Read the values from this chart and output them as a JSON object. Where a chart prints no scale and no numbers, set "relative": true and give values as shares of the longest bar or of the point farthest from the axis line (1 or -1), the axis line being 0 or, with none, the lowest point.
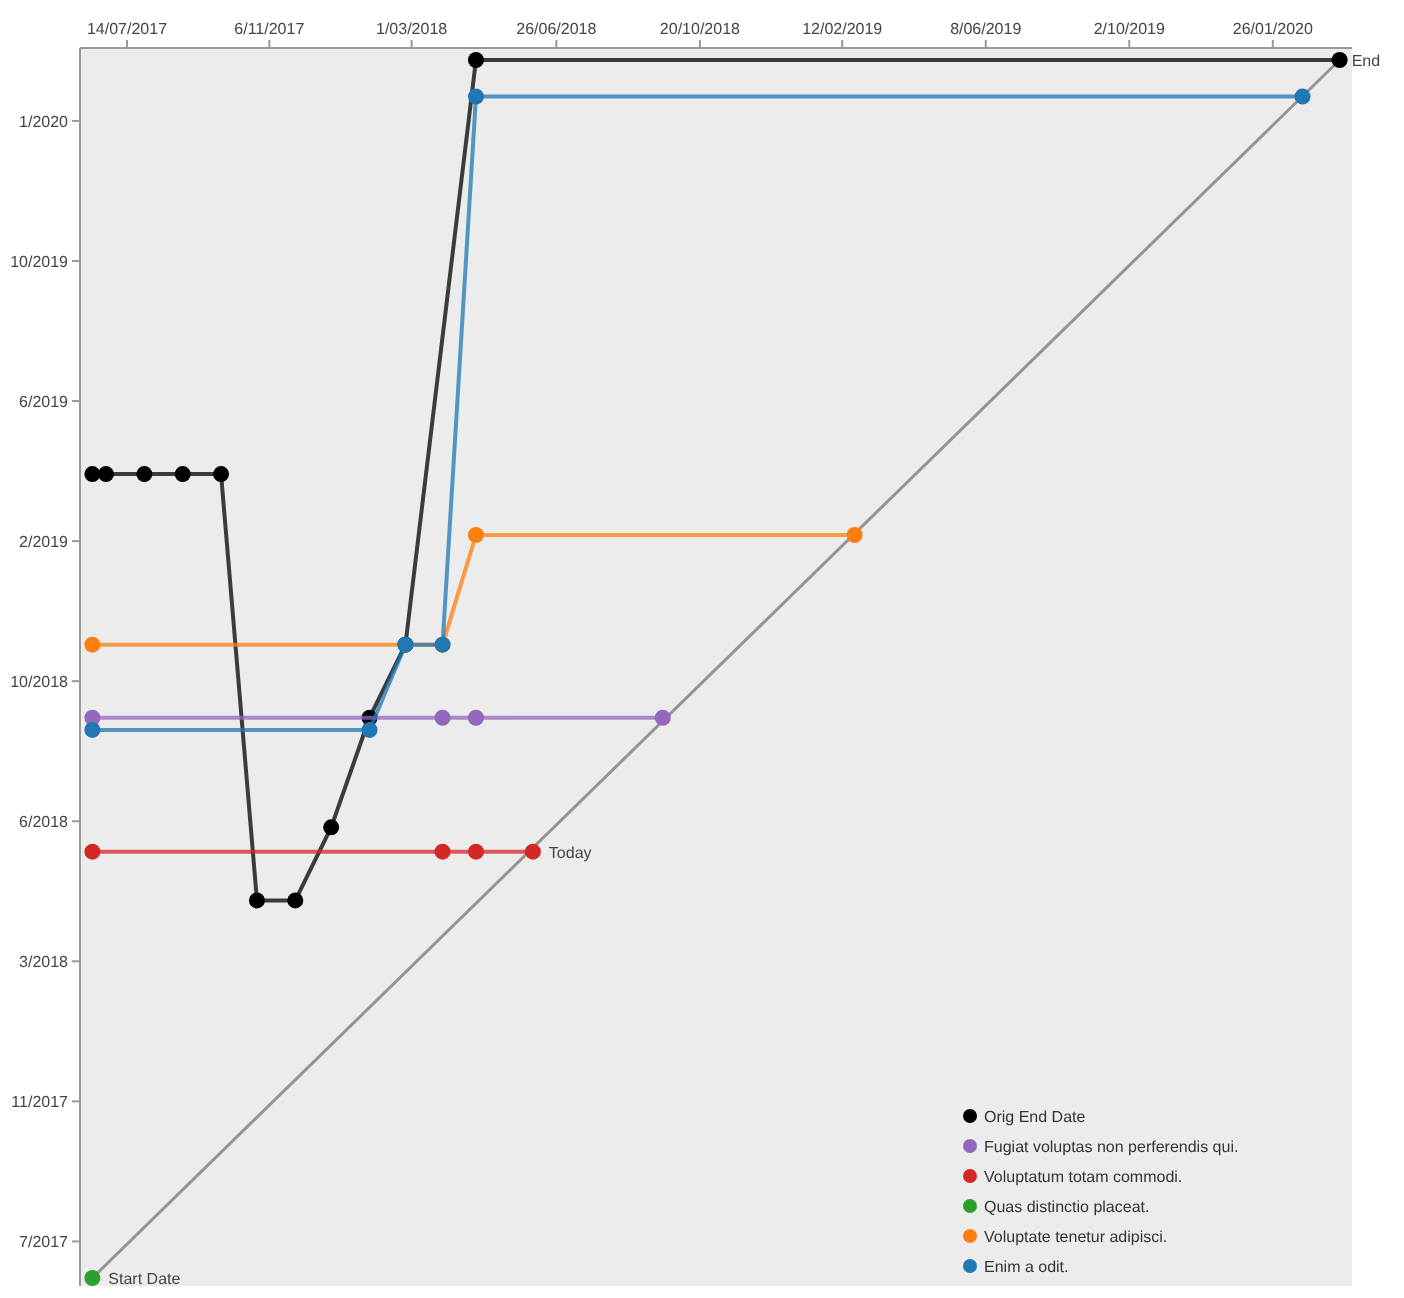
{
  "chart_data": {
    "type": "line",
    "relative": true,
    "xlim": [
      "2017-06-06",
      "2020-03-30"
    ],
    "xticks": [
      {
        "value": "2017-07-14",
        "label": "14/07/2017"
      },
      {
        "value": "2017-11-06",
        "label": "6/11/2017"
      },
      {
        "value": "2018-03-01",
        "label": "1/03/2018"
      },
      {
        "value": "2018-06-26",
        "label": "26/06/2018"
      },
      {
        "value": "2018-10-20",
        "label": "20/10/2018"
      },
      {
        "value": "2019-02-12",
        "label": "12/02/2019"
      },
      {
        "value": "2019-06-08",
        "label": "8/06/2019"
      },
      {
        "value": "2019-10-02",
        "label": "2/10/2019"
      },
      {
        "value": "2020-01-26",
        "label": "26/01/2020"
      }
    ],
    "marker": "circle",
    "legend": "bottom right",
    "series": [
      {
        "type": "line",
        "marker": "none",
        "color": "#777777",
        "x": [
          "2017-06-16",
          "2020-03-20"
        ],
        "values": [
          0,
          1
        ]
      },
      {
        "name": "Orig End Date",
        "color": "#000000",
        "x": [
          "2017-06-16",
          "2017-06-27",
          "2017-07-28",
          "2017-08-28",
          "2017-09-28",
          "2017-10-27",
          "2017-11-27",
          "2017-12-26",
          "2018-01-26",
          "2018-02-24",
          "2018-04-22",
          "2020-03-20"
        ],
        "values": [
          0.66,
          0.66,
          0.66,
          0.66,
          0.66,
          0.31,
          0.31,
          0.37,
          0.46,
          0.52,
          1,
          1
        ]
      },
      {
        "name": "Fugiat voluptas non perferendis qui.",
        "color": "#9467bd",
        "x": [
          "2017-06-16",
          "2018-03-26",
          "2018-04-22",
          "2018-09-20"
        ],
        "values": [
          0.46,
          0.46,
          0.46,
          0.46
        ]
      },
      {
        "name": "Voluptatum totam commodi.",
        "color": "#d62728",
        "x": [
          "2017-06-16",
          "2018-03-26",
          "2018-04-22",
          "2018-06-07"
        ],
        "values": [
          0.35,
          0.35,
          0.35,
          0.35
        ]
      },
      {
        "name": "Quas distinctio placeat.",
        "color": "#2ca02c",
        "x": [
          "2017-06-16"
        ],
        "values": [
          0
        ]
      },
      {
        "name": "Voluptate tenetur adipisci.",
        "color": "#ff7f0e",
        "x": [
          "2017-06-16",
          "2018-03-26",
          "2018-04-22",
          "2019-02-22"
        ],
        "values": [
          0.52,
          0.52,
          0.61,
          0.61
        ]
      },
      {
        "name": "Enim a odit.",
        "color": "#1f77b4",
        "x": [
          "2017-06-16",
          "2018-01-26",
          "2018-02-24",
          "2018-03-26",
          "2018-04-22",
          "2020-02-19"
        ],
        "values": [
          0.45,
          0.45,
          0.52,
          0.52,
          0.97,
          0.97
        ]
      }
    ],
    "annotations": [
      {
        "text": "Start Date",
        "x": "2017-06-16",
        "y": 0
      },
      {
        "text": "End",
        "x": "2020-03-20",
        "y": 1
      },
      {
        "text": "Today",
        "x": "2018-06-07",
        "y": 0.35
      },
      "7/2017",
      "11/2017",
      "3/2018",
      "6/2018",
      "10/2018",
      "2/2019",
      "6/2019",
      "10/2019",
      "1/2020"
    ]
  }
}
